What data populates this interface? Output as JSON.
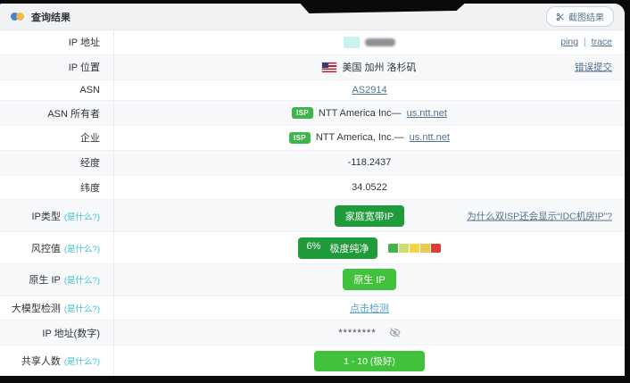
{
  "window": {
    "title": "查询结果",
    "screenshot_button_label": "截图结果"
  },
  "colors": {
    "header_bg": "#f1f2f4",
    "alt_row_bg": "#f7f8fa",
    "link_blue": "#53718f",
    "teal": "#3bc3cf",
    "green_dark": "#1f9b3b",
    "green_bright": "#42c13c",
    "risk_segments": [
      "#45b14a",
      "#cede6a",
      "#f2d641",
      "#edc84a",
      "#e23d30"
    ]
  },
  "rows": {
    "ip": {
      "label": "IP 地址",
      "link1": "ping",
      "sep": "|",
      "link2": "trace"
    },
    "location": {
      "label": "IP 位置",
      "value": "美国 加州 洛杉矶",
      "right_link": "错误提交"
    },
    "asn": {
      "label": "ASN",
      "value_link": "AS2914"
    },
    "asn_owner": {
      "label": "ASN 所有者",
      "badge": "ISP",
      "text": "NTT America Inc—",
      "link": "us.ntt.net"
    },
    "company": {
      "label": "企业",
      "badge": "ISP",
      "text": "NTT America, Inc.—",
      "link": "us.ntt.net"
    },
    "longitude": {
      "label": "经度",
      "value": "-118.2437"
    },
    "latitude": {
      "label": "纬度",
      "value": "34.0522"
    },
    "ip_type": {
      "label": "IP类型",
      "note": "(是什么?)",
      "badge_value": "家庭宽带IP",
      "right_link": "为什么双ISP还会显示“IDC机房IP”?"
    },
    "risk": {
      "label": "风控值",
      "note": "(是什么?)",
      "percent": "6%",
      "text": "极度纯净"
    },
    "native_ip": {
      "label": "原生 IP",
      "note": "(是什么?)",
      "badge_value": "原生 IP"
    },
    "llm_check": {
      "label": "大模型检测",
      "note": "(是什么?)",
      "action_link": "点击检测"
    },
    "ip_number": {
      "label": "IP 地址(数字)",
      "value": "********"
    },
    "shared": {
      "label": "共享人数",
      "note": "(是什么?)",
      "badge_value": "1 - 10 (极好)"
    }
  }
}
